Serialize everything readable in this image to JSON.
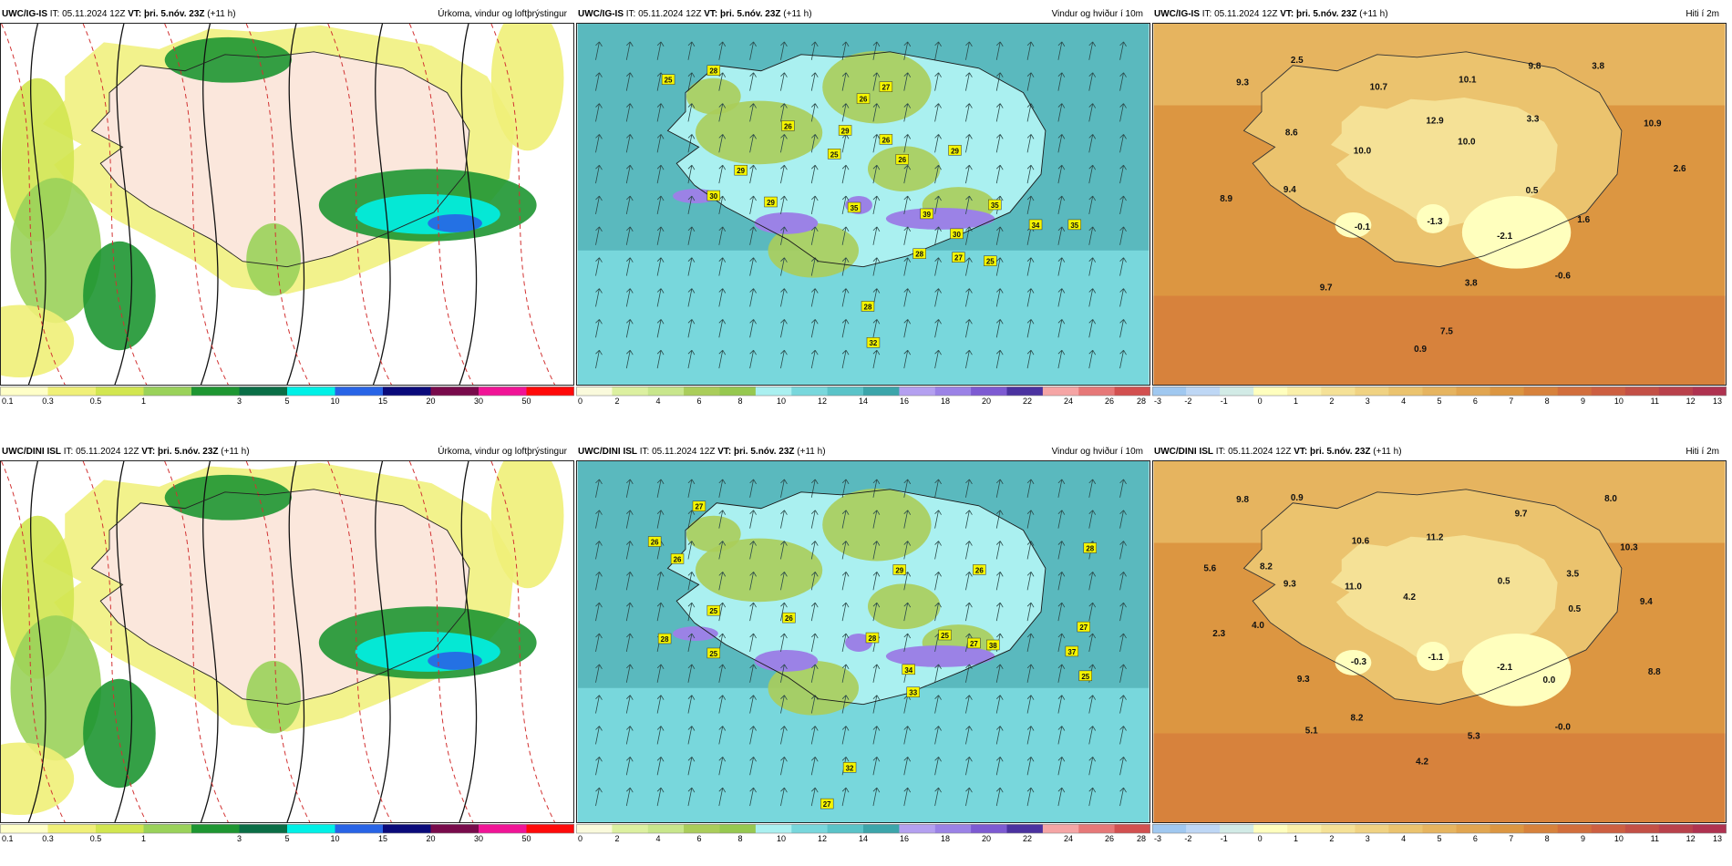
{
  "panels": [
    {
      "model": "UWC/IG-IS",
      "it_label": "IT:",
      "it": "05.11.2024 12Z",
      "vt_label": "VT:",
      "vt": "þri. 5.nóv. 23Z",
      "lead": "(+11 h)",
      "variable": "Úrkoma, vindur og loftþrýstingur",
      "kind": "precip",
      "labels": [],
      "cbar": {
        "colors": [
          "#ffffc8",
          "#f0f078",
          "#d2e650",
          "#9ad25a",
          "#1e9632",
          "#0a6e46",
          "#00f0e6",
          "#2864e6",
          "#0a0a7a",
          "#780a4b",
          "#f01496",
          "#ff0a0a"
        ],
        "ticks": [
          "0.1",
          "0.3",
          "0.5",
          "1",
          "3",
          "5",
          "10",
          "15",
          "20",
          "30",
          "50"
        ]
      }
    },
    {
      "model": "UWC/IG-IS",
      "it_label": "IT:",
      "it": "05.11.2024 12Z",
      "vt_label": "VT:",
      "vt": "þri. 5.nóv. 23Z",
      "lead": "(+11 h)",
      "variable": "Vindur og hviður í 10m",
      "kind": "wind",
      "labels": [
        "25",
        "28",
        "26",
        "27",
        "26",
        "29",
        "26",
        "25",
        "26",
        "29",
        "29",
        "30",
        "29",
        "39",
        "35",
        "30",
        "35",
        "34",
        "35",
        "28",
        "27",
        "25",
        "28",
        "32"
      ],
      "cbar": {
        "colors": [
          "#fafadc",
          "#dcf0a0",
          "#c8e68c",
          "#aacd5a",
          "#96c850",
          "#aaf0f0",
          "#78d7dc",
          "#5ac3c8",
          "#3ca5aa",
          "#b4a0f0",
          "#9b82e6",
          "#7d5ad2",
          "#4b32a0",
          "#f5a5a5",
          "#e67878",
          "#d25050"
        ],
        "ticks": [
          "0",
          "2",
          "4",
          "6",
          "8",
          "10",
          "12",
          "14",
          "16",
          "18",
          "20",
          "22",
          "24",
          "26",
          "28"
        ]
      }
    },
    {
      "model": "UWC/IG-IS",
      "it_label": "IT:",
      "it": "05.11.2024 12Z",
      "vt_label": "VT:",
      "vt": "þri. 5.nóv. 23Z",
      "lead": "(+11 h)",
      "variable": "Hiti í 2m",
      "kind": "temp",
      "labels": [
        "9.3",
        "2.5",
        "10.7",
        "10.1",
        "9.8",
        "3.8",
        "8.6",
        "12.9",
        "3.3",
        "10.9",
        "10.0",
        "10.0",
        "2.6",
        "8.9",
        "9.4",
        "0.5",
        "-0.1",
        "-1.3",
        "1.6",
        "-2.1",
        "9.7",
        "3.8",
        "-0.6",
        "7.5",
        "0.9"
      ],
      "cbar": {
        "colors": [
          "#a0c8f0",
          "#bed7f5",
          "#d2ebe6",
          "#ffffbe",
          "#faf0aa",
          "#f5e196",
          "#f0d282",
          "#ebc36e",
          "#e6b45f",
          "#e1a550",
          "#dc9641",
          "#d7823c",
          "#d26e3c",
          "#cd5f41",
          "#c35046",
          "#b9414b",
          "#af3250"
        ],
        "ticks": [
          "-3",
          "-2",
          "-1",
          "0",
          "1",
          "2",
          "3",
          "4",
          "5",
          "6",
          "7",
          "8",
          "9",
          "10",
          "11",
          "12",
          "13"
        ]
      }
    },
    {
      "model": "UWC/DINI ISL",
      "it_label": "IT:",
      "it": "05.11.2024 12Z",
      "vt_label": "VT:",
      "vt": "þri. 5.nóv. 23Z",
      "lead": "(+11 h)",
      "variable": "Úrkoma, vindur og loftþrýstingur",
      "kind": "precip",
      "labels": [],
      "cbar": {
        "colors": [
          "#ffffc8",
          "#f0f078",
          "#d2e650",
          "#9ad25a",
          "#1e9632",
          "#0a6e46",
          "#00f0e6",
          "#2864e6",
          "#0a0a7a",
          "#780a4b",
          "#f01496",
          "#ff0a0a"
        ],
        "ticks": [
          "0.1",
          "0.3",
          "0.5",
          "1",
          "3",
          "5",
          "10",
          "15",
          "20",
          "30",
          "50"
        ]
      }
    },
    {
      "model": "UWC/DINI ISL",
      "it_label": "IT:",
      "it": "05.11.2024 12Z",
      "vt_label": "VT:",
      "vt": "þri. 5.nóv. 23Z",
      "lead": "(+11 h)",
      "variable": "Vindur og hviður í 10m",
      "kind": "wind",
      "labels": [
        "27",
        "26",
        "26",
        "25",
        "28",
        "28",
        "29",
        "26",
        "28",
        "27",
        "25",
        "26",
        "25",
        "38",
        "27",
        "34",
        "33",
        "37",
        "25",
        "27",
        "32"
      ],
      "cbar": {
        "colors": [
          "#fafadc",
          "#dcf0a0",
          "#c8e68c",
          "#aacd5a",
          "#96c850",
          "#aaf0f0",
          "#78d7dc",
          "#5ac3c8",
          "#3ca5aa",
          "#b4a0f0",
          "#9b82e6",
          "#7d5ad2",
          "#4b32a0",
          "#f5a5a5",
          "#e67878",
          "#d25050"
        ],
        "ticks": [
          "0",
          "2",
          "4",
          "6",
          "8",
          "10",
          "12",
          "14",
          "16",
          "18",
          "20",
          "22",
          "24",
          "26",
          "28"
        ]
      }
    },
    {
      "model": "UWC/DINI ISL",
      "it_label": "IT:",
      "it": "05.11.2024 12Z",
      "vt_label": "VT:",
      "vt": "þri. 5.nóv. 23Z",
      "lead": "(+11 h)",
      "variable": "Hiti í 2m",
      "kind": "temp",
      "labels": [
        "9.8",
        "0.9",
        "9.7",
        "8.0",
        "5.6",
        "8.2",
        "10.6",
        "11.2",
        "10.3",
        "9.3",
        "11.0",
        "4.2",
        "0.5",
        "3.5",
        "4.0",
        "0.5",
        "9.4",
        "2.3",
        "-0.3",
        "-1.1",
        "-2.1",
        "8.8",
        "9.3",
        "0.0",
        "8.2",
        "5.1",
        "5.3",
        "-0.0",
        "4.2"
      ],
      "cbar": {
        "colors": [
          "#a0c8f0",
          "#bed7f5",
          "#d2ebe6",
          "#ffffbe",
          "#faf0aa",
          "#f5e196",
          "#f0d282",
          "#ebc36e",
          "#e6b45f",
          "#e1a550",
          "#dc9641",
          "#d7823c",
          "#d26e3c",
          "#cd5f41",
          "#c35046",
          "#b9414b",
          "#af3250"
        ],
        "ticks": [
          "-3",
          "-2",
          "-1",
          "0",
          "1",
          "2",
          "3",
          "4",
          "5",
          "6",
          "7",
          "8",
          "9",
          "10",
          "11",
          "12",
          "13"
        ]
      }
    }
  ]
}
